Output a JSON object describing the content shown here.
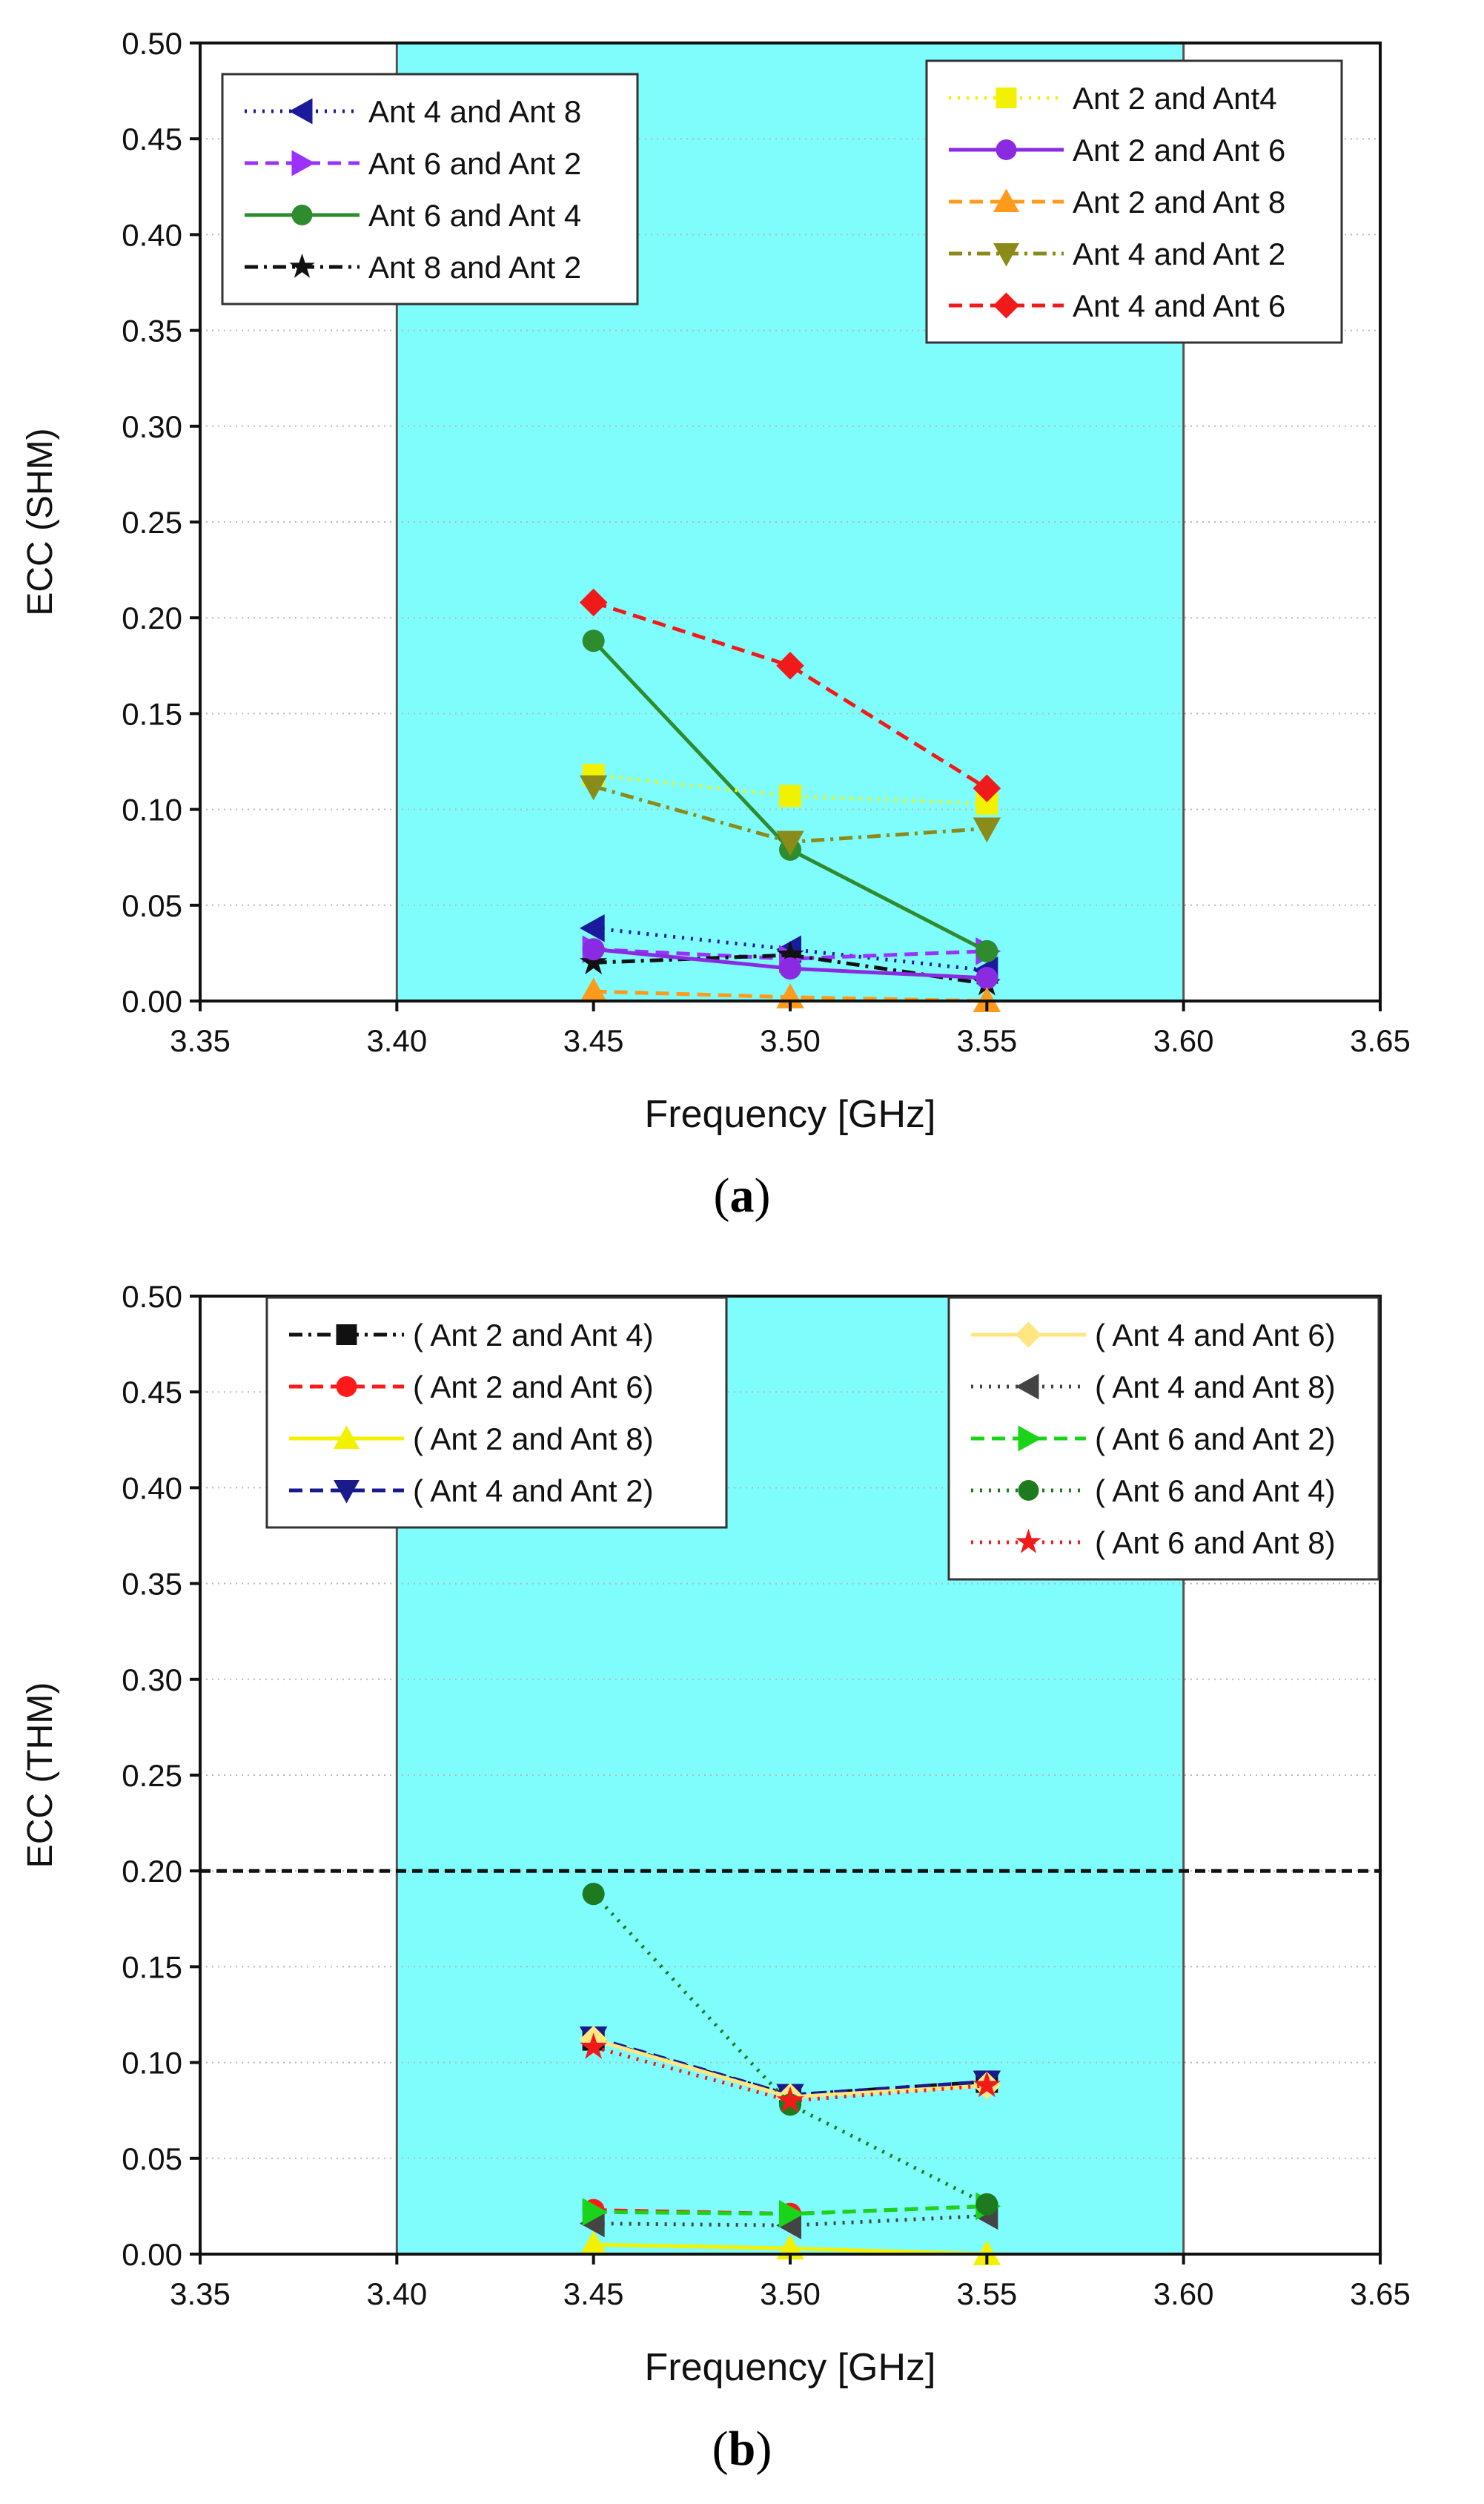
{
  "chart_data": [
    {
      "type": "line",
      "panel_label": "a",
      "xlabel": "Frequency [GHz]",
      "ylabel": "ECC (SHM)",
      "xlim": [
        3.35,
        3.65
      ],
      "ylim": [
        0,
        0.5
      ],
      "xticks": [
        "3.35",
        "3.40",
        "3.45",
        "3.50",
        "3.55",
        "3.60",
        "3.65"
      ],
      "yticks": [
        "0.00",
        "0.05",
        "0.10",
        "0.15",
        "0.20",
        "0.25",
        "0.30",
        "0.35",
        "0.40",
        "0.45",
        "0.50"
      ],
      "highlight_band": {
        "x0": 3.4,
        "x1": 3.6,
        "color": "#7ffcfc"
      },
      "grid": "horizontal dotted",
      "x": [
        3.45,
        3.5,
        3.55
      ],
      "series": [
        {
          "name": "Ant 4 and Ant 8",
          "color": "#1a1a9c",
          "dash": "dot",
          "marker": "triangle-left",
          "values": [
            0.038,
            0.027,
            0.016
          ],
          "legend": "left"
        },
        {
          "name": "Ant 6 and Ant 2",
          "color": "#9b30ff",
          "dash": "dash",
          "marker": "triangle-right",
          "values": [
            0.027,
            0.022,
            0.026
          ],
          "legend": "left"
        },
        {
          "name": "Ant 6 and Ant 4",
          "color": "#2e8b2e",
          "dash": "solid",
          "marker": "circle",
          "values": [
            0.188,
            0.079,
            0.026
          ],
          "legend": "left"
        },
        {
          "name": "Ant 8 and Ant 2",
          "color": "#111111",
          "dash": "dashdot",
          "marker": "star",
          "values": [
            0.02,
            0.024,
            0.009
          ],
          "legend": "left"
        },
        {
          "name": "Ant 2 and Ant4",
          "color": "#f2f200",
          "dash": "dot",
          "marker": "square",
          "values": [
            0.118,
            0.107,
            0.103
          ],
          "legend": "right"
        },
        {
          "name": "Ant 2 and Ant 6",
          "color": "#8a2be2",
          "dash": "solid",
          "marker": "circle",
          "values": [
            0.027,
            0.017,
            0.012
          ],
          "legend": "right"
        },
        {
          "name": "Ant 2 and Ant 8",
          "color": "#ff9a1a",
          "dash": "dash",
          "marker": "triangle-up",
          "values": [
            0.005,
            0.002,
            0.0
          ],
          "legend": "right"
        },
        {
          "name": "Ant 4 and Ant 2",
          "color": "#8b8b1a",
          "dash": "dashdot",
          "marker": "triangle-down",
          "values": [
            0.112,
            0.083,
            0.09
          ],
          "legend": "right"
        },
        {
          "name": "Ant 4 and Ant 6",
          "color": "#f01a1a",
          "dash": "dash",
          "marker": "diamond",
          "values": [
            0.208,
            0.175,
            0.111
          ],
          "legend": "right"
        }
      ]
    },
    {
      "type": "line",
      "panel_label": "b",
      "xlabel": "Frequency [GHz]",
      "ylabel": "ECC (THM)",
      "xlim": [
        3.35,
        3.65
      ],
      "ylim": [
        0,
        0.5
      ],
      "xticks": [
        "3.35",
        "3.40",
        "3.45",
        "3.50",
        "3.55",
        "3.60",
        "3.65"
      ],
      "yticks": [
        "0.00",
        "0.05",
        "0.10",
        "0.15",
        "0.20",
        "0.25",
        "0.30",
        "0.35",
        "0.40",
        "0.45",
        "0.50"
      ],
      "highlight_band": {
        "x0": 3.4,
        "x1": 3.6,
        "color": "#7ffcfc"
      },
      "reference_line": 0.2,
      "grid": "horizontal dotted",
      "x": [
        3.45,
        3.5,
        3.55
      ],
      "series": [
        {
          "name": "( Ant 2 and Ant 4)",
          "color": "#111111",
          "dash": "dashdot",
          "marker": "square",
          "values": [
            0.112,
            0.083,
            0.09
          ],
          "legend": "left"
        },
        {
          "name": "( Ant 2 and Ant 6)",
          "color": "#ff1a1a",
          "dash": "dash",
          "marker": "circle",
          "values": [
            0.023,
            0.021,
            0.025
          ],
          "legend": "left"
        },
        {
          "name": "( Ant 2 and Ant 8)",
          "color": "#f2f200",
          "dash": "solid",
          "marker": "triangle-up",
          "values": [
            0.005,
            0.003,
            0.0
          ],
          "legend": "left"
        },
        {
          "name": "( Ant 4 and Ant 2)",
          "color": "#1a1a8c",
          "dash": "dash",
          "marker": "triangle-down",
          "values": [
            0.113,
            0.083,
            0.09
          ],
          "legend": "left"
        },
        {
          "name": "( Ant 4 and Ant 6)",
          "color": "#ffe680",
          "dash": "solid",
          "marker": "diamond",
          "values": [
            0.112,
            0.082,
            0.088
          ],
          "legend": "right"
        },
        {
          "name": "( Ant 4 and Ant 8)",
          "color": "#444444",
          "dash": "dot",
          "marker": "triangle-left",
          "values": [
            0.016,
            0.015,
            0.02
          ],
          "legend": "right"
        },
        {
          "name": "( Ant 6 and Ant 2)",
          "color": "#1ad41a",
          "dash": "dash",
          "marker": "triangle-right",
          "values": [
            0.022,
            0.021,
            0.025
          ],
          "legend": "right"
        },
        {
          "name": "( Ant 6 and Ant 4)",
          "color": "#1e7a1e",
          "dash": "dot",
          "marker": "circle",
          "values": [
            0.188,
            0.078,
            0.026
          ],
          "legend": "right"
        },
        {
          "name": "( Ant 6 and Ant 8)",
          "color": "#f01a1a",
          "dash": "dot",
          "marker": "star",
          "values": [
            0.108,
            0.08,
            0.088
          ],
          "legend": "right"
        }
      ]
    }
  ]
}
